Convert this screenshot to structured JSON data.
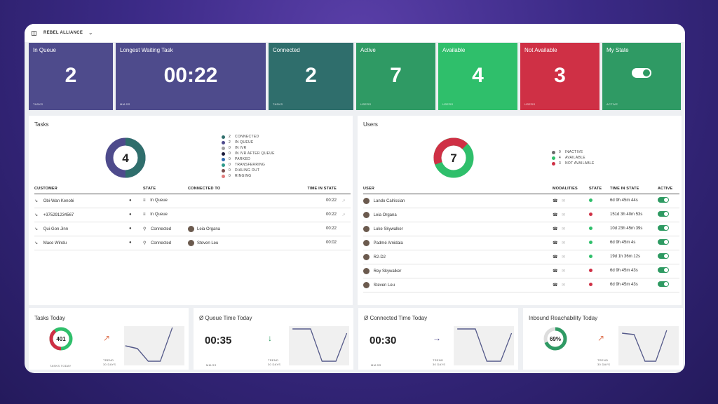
{
  "topbar": {
    "team": "REBEL ALLIANCE"
  },
  "kpis": [
    {
      "label": "In Queue",
      "value": "2",
      "unit": "TASKS",
      "color": "#4e4b8c"
    },
    {
      "label": "Longest Waiting Task",
      "value": "00:22",
      "unit": "MM:SS",
      "color": "#4e4b8c"
    },
    {
      "label": "Connected",
      "value": "2",
      "unit": "TASKS",
      "color": "#2f6e6c"
    },
    {
      "label": "Active",
      "value": "7",
      "unit": "USERS",
      "color": "#2f9a64"
    },
    {
      "label": "Available",
      "value": "4",
      "unit": "USERS",
      "color": "#2fbf6b"
    },
    {
      "label": "Not Available",
      "value": "3",
      "unit": "USERS",
      "color": "#cf3045"
    },
    {
      "label": "My State",
      "value": "",
      "unit": "ACTIVE",
      "color": "#2f9a64"
    }
  ],
  "tasks": {
    "title": "Tasks",
    "total": "4",
    "legend": [
      {
        "n": "2",
        "label": "CONNECTED",
        "color": "#2f6e6c"
      },
      {
        "n": "2",
        "label": "IN QUEUE",
        "color": "#4e4b8c"
      },
      {
        "n": "0",
        "label": "IN IVR",
        "color": "#a0a0a0"
      },
      {
        "n": "0",
        "label": "IN IVR AFTER QUEUE",
        "color": "#1a1a3a"
      },
      {
        "n": "0",
        "label": "PARKED",
        "color": "#2f6ab0"
      },
      {
        "n": "0",
        "label": "TRANSFERRING",
        "color": "#2e9a8a"
      },
      {
        "n": "0",
        "label": "DIALING OUT",
        "color": "#7a4e4e"
      },
      {
        "n": "0",
        "label": "RINGING",
        "color": "#e07a7a"
      }
    ],
    "headers": {
      "customer": "CUSTOMER",
      "state": "STATE",
      "connected": "CONNECTED TO",
      "time": "TIME IN STATE"
    },
    "rows": [
      {
        "customer": "Obi-Wan Kenobi",
        "state": "In Queue",
        "connected": "",
        "time": "00:22"
      },
      {
        "customer": "+375291234567",
        "state": "In Queue",
        "connected": "",
        "time": "00:22"
      },
      {
        "customer": "Qui-Gon Jinn",
        "state": "Connected",
        "connected": "Leia Organa",
        "time": "00:22"
      },
      {
        "customer": "Mace Windu",
        "state": "Connected",
        "connected": "Steven Leu",
        "time": "00:02"
      }
    ]
  },
  "users": {
    "title": "Users",
    "total": "7",
    "legend": [
      {
        "n": "0",
        "label": "INACTIVE",
        "color": "#6b6b6b"
      },
      {
        "n": "4",
        "label": "AVAILABLE",
        "color": "#2fbf6b"
      },
      {
        "n": "3",
        "label": "NOT AVAILABLE",
        "color": "#cf3045"
      }
    ],
    "headers": {
      "user": "USER",
      "modalities": "MODALITIES",
      "state": "STATE",
      "time": "TIME IN STATE",
      "active": "ACTIVE"
    },
    "rows": [
      {
        "user": "Lando Calrissian",
        "state_color": "#2fbf6b",
        "time": "6d 9h 45m 44s"
      },
      {
        "user": "Leia Organa",
        "state_color": "#cf3045",
        "time": "151d 3h 40m 53s"
      },
      {
        "user": "Luke Skywalker",
        "state_color": "#2fbf6b",
        "time": "10d 23h 45m 39s"
      },
      {
        "user": "Padmé Amidala",
        "state_color": "#2fbf6b",
        "time": "6d 9h 45m 4s"
      },
      {
        "user": "R2-D2",
        "state_color": "#2fbf6b",
        "time": "19d 1h 36m 12s"
      },
      {
        "user": "Rey Skywalker",
        "state_color": "#cf3045",
        "time": "6d 9h 45m 43s"
      },
      {
        "user": "Steven Leu",
        "state_color": "#cf3045",
        "time": "6d 9h 45m 43s"
      }
    ]
  },
  "stats": [
    {
      "title": "Tasks Today",
      "value": "401",
      "caption": "TASKS TODAY",
      "trend_label": "TREND",
      "trend_period": "30 DAYS",
      "arrow": "↗",
      "arrow_color": "#e07a5a",
      "kind": "ring"
    },
    {
      "title": "Ø Queue Time Today",
      "value": "00:35",
      "caption": "MM:SS",
      "trend_label": "TREND",
      "trend_period": "30 DAYS",
      "arrow": "↓",
      "arrow_color": "#2e9a62",
      "kind": "text"
    },
    {
      "title": "Ø Connected Time Today",
      "value": "00:30",
      "caption": "MM:SS",
      "trend_label": "TREND",
      "trend_period": "30 DAYS",
      "arrow": "→",
      "arrow_color": "#4e4b8c",
      "kind": "text"
    },
    {
      "title": "Inbound Reachability Today",
      "value": "69%",
      "caption": "",
      "trend_label": "TREND",
      "trend_period": "30 DAYS",
      "arrow": "↗",
      "arrow_color": "#e07a5a",
      "kind": "pct",
      "pct": 0.69
    }
  ]
}
